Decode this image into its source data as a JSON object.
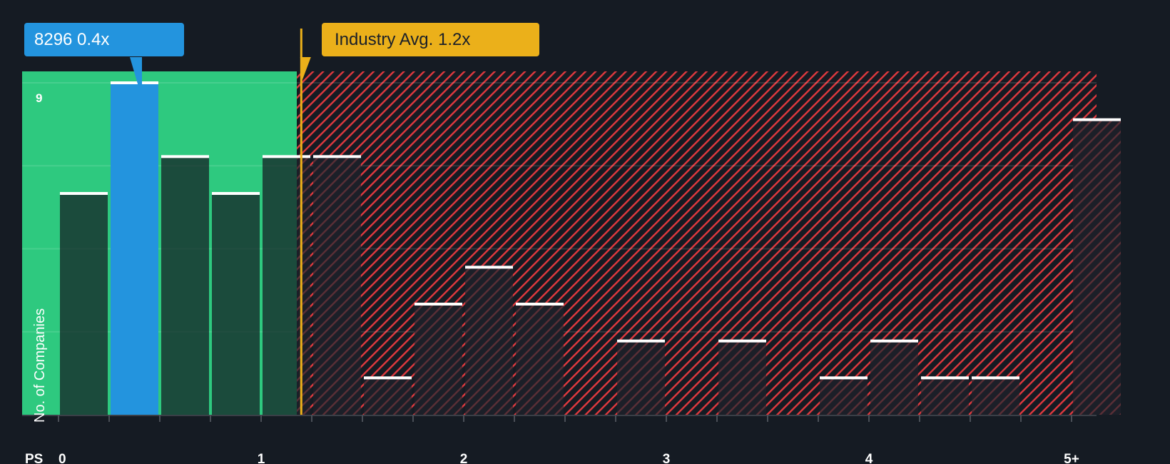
{
  "company_callout": {
    "label": "8296 0.4x",
    "ticker": "8296",
    "value": 0.4
  },
  "industry_callout": {
    "label": "Industry Avg. 1.2x",
    "value": 1.2
  },
  "colors": {
    "background": "#151b23",
    "fair_zone": "#2ec97f",
    "expensive_hatch": "#e0393e",
    "company_bar": "#2394de",
    "industry_line": "#ebb01a",
    "bar_cap": "#ffffff"
  },
  "chart_data": {
    "type": "bar",
    "title": "",
    "xlabel": "PS",
    "ylabel": "No. of Companies",
    "x_tick_labels": [
      "0",
      "1",
      "2",
      "3",
      "4",
      "5+"
    ],
    "y_tick_labels": [
      "9"
    ],
    "bin_width": 0.25,
    "categories": [
      "0-0.25",
      "0.25-0.5",
      "0.5-0.75",
      "0.75-1",
      "1-1.25",
      "1.25-1.5",
      "1.5-1.75",
      "1.75-2",
      "2-2.25",
      "2.25-2.5",
      "2.5-2.75",
      "2.75-3",
      "3-3.25",
      "3.25-3.5",
      "3.5-3.75",
      "3.75-4",
      "4-4.25",
      "4.25-4.5",
      "4.5-4.75",
      "4.75-5",
      "5+"
    ],
    "values": [
      6,
      9,
      7,
      6,
      7,
      7,
      1,
      3,
      4,
      3,
      0,
      2,
      0,
      2,
      0,
      1,
      2,
      1,
      1,
      0,
      8
    ],
    "highlight_index": 1,
    "highlight_label": "8296 0.4x",
    "reference_line": {
      "label": "Industry Avg. 1.2x",
      "x": 1.2
    },
    "ylim": [
      0,
      9
    ],
    "xlim": [
      0,
      5
    ],
    "grid": true,
    "legend": "none"
  },
  "axis": {
    "x_title": "PS",
    "y_title": "No. of Companies",
    "y_max_label": "9"
  }
}
